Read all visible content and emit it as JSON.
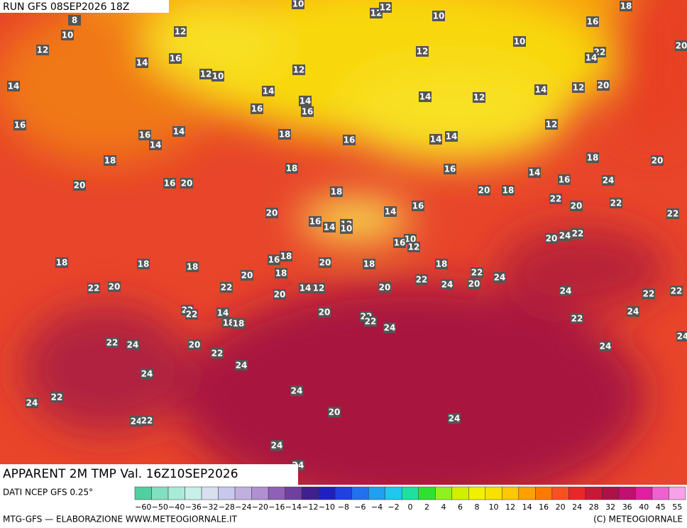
{
  "header": {
    "run": "RUN GFS 08SEP2026 18Z",
    "title": "APPARENT 2M TMP Val. 16Z10SEP2026"
  },
  "map_labels": [
    10,
    12,
    12,
    10,
    18,
    8,
    10,
    12,
    16,
    12,
    12,
    10,
    22,
    14,
    20,
    14,
    16,
    12,
    10,
    12,
    14,
    14,
    14,
    12,
    14,
    12,
    20,
    14,
    16,
    16,
    16,
    16,
    14,
    18,
    16,
    14,
    14,
    12,
    14,
    18,
    18,
    20,
    18,
    16,
    14,
    16,
    20,
    16,
    24,
    20,
    18,
    20,
    18,
    22,
    22,
    20,
    14,
    16,
    20,
    22,
    16,
    14,
    12,
    10,
    20,
    24,
    22,
    10,
    16,
    12,
    16,
    18,
    18,
    18,
    18,
    18,
    18,
    20,
    20,
    18,
    22,
    24,
    22,
    24,
    20,
    22,
    20,
    22,
    14,
    12,
    20,
    24,
    22,
    22,
    20,
    22,
    22,
    14,
    18,
    18,
    20,
    22,
    22,
    24,
    22,
    24,
    22,
    24,
    20,
    22,
    24,
    24,
    24,
    24,
    22,
    24,
    20,
    24,
    22,
    24,
    24,
    24,
    24
  ],
  "colorbar": {
    "source": "DATI NCEP GFS 0.25°",
    "labels": [
      "−60",
      "−50",
      "−40",
      "−36",
      "−32",
      "−28",
      "−24",
      "−20",
      "−16",
      "−14",
      "−12",
      "−10",
      "−8",
      "−6",
      "−4",
      "−2",
      "0",
      "2",
      "4",
      "6",
      "8",
      "10",
      "12",
      "14",
      "16",
      "20",
      "24",
      "28",
      "32",
      "36",
      "40",
      "45",
      "55"
    ],
    "colors": [
      "#50d0a0",
      "#80e0c0",
      "#a8ecd8",
      "#c8f0e8",
      "#d8e0f0",
      "#c8c8ec",
      "#c0b0e0",
      "#b090d0",
      "#9060b8",
      "#7040a0",
      "#402090",
      "#2020c0",
      "#2040e0",
      "#2070f0",
      "#20a0f0",
      "#20c8f0",
      "#20e0a0",
      "#30e030",
      "#90f020",
      "#d0f000",
      "#f0f000",
      "#f8e000",
      "#ffc800",
      "#ffa000",
      "#ff7800",
      "#f85020",
      "#e82828",
      "#c81838",
      "#b01048",
      "#c01070",
      "#e020a0",
      "#f060d0",
      "#f8a0e8"
    ]
  },
  "footer": {
    "left": "MTG-GFS — ELABORAZIONE WWW.METEOGIORNALE.IT",
    "right": "(C) METEOGIORNALE"
  }
}
